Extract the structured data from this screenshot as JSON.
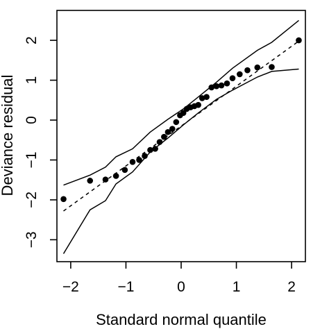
{
  "chart_data": {
    "type": "scatter",
    "title": "",
    "xlabel": "Standard normal quantile",
    "ylabel": "Deviance residual",
    "xlim": [
      -2.25,
      2.25
    ],
    "ylim": [
      -3.55,
      2.75
    ],
    "grid": false,
    "x_ticks": [
      -2,
      -1,
      0,
      1,
      2
    ],
    "x_tick_labels": [
      "−2",
      "−1",
      "0",
      "1",
      "2"
    ],
    "y_ticks": [
      -3,
      -2,
      -1,
      0,
      1,
      2
    ],
    "y_tick_labels": [
      "−3",
      "−2",
      "−1",
      "0",
      "1",
      "2"
    ],
    "points": {
      "x": [
        -2.13,
        -1.65,
        -1.37,
        -1.18,
        -1.02,
        -0.88,
        -0.76,
        -0.66,
        -0.56,
        -0.47,
        -0.39,
        -0.31,
        -0.24,
        -0.16,
        -0.09,
        -0.02,
        0.04,
        0.1,
        0.17,
        0.24,
        0.31,
        0.38,
        0.46,
        0.55,
        0.64,
        0.73,
        0.83,
        0.93,
        1.06,
        1.2,
        1.38,
        1.64,
        2.13
      ],
      "y": [
        -1.98,
        -1.52,
        -1.49,
        -1.4,
        -1.25,
        -1.05,
        -1.0,
        -0.9,
        -0.75,
        -0.72,
        -0.55,
        -0.42,
        -0.3,
        -0.22,
        -0.05,
        0.12,
        0.18,
        0.28,
        0.32,
        0.35,
        0.38,
        0.55,
        0.58,
        0.82,
        0.85,
        0.87,
        0.92,
        1.05,
        1.15,
        1.25,
        1.32,
        1.33,
        2.0
      ]
    },
    "reference_line": {
      "x": [
        -2.13,
        2.13
      ],
      "y": [
        -2.28,
        1.98
      ],
      "style": "dashed"
    },
    "envelope_upper": {
      "x": [
        -2.13,
        -1.65,
        -1.37,
        -1.18,
        -0.88,
        -0.56,
        -0.24,
        0.04,
        0.31,
        0.64,
        0.93,
        1.38,
        1.64,
        2.13
      ],
      "y": [
        -1.63,
        -1.38,
        -1.18,
        -0.92,
        -0.72,
        -0.3,
        0.02,
        0.28,
        0.58,
        0.95,
        1.3,
        1.75,
        1.95,
        2.5
      ]
    },
    "envelope_lower": {
      "x": [
        -2.13,
        -1.65,
        -1.37,
        -1.18,
        -0.88,
        -0.56,
        -0.24,
        0.04,
        0.31,
        0.64,
        0.93,
        1.38,
        1.64,
        2.13
      ],
      "y": [
        -3.35,
        -2.25,
        -2.02,
        -1.6,
        -1.3,
        -0.8,
        -0.45,
        -0.12,
        0.18,
        0.52,
        0.75,
        1.08,
        1.22,
        1.28
      ]
    },
    "colors": {
      "points": "#000000",
      "lines": "#000000",
      "background": "#ffffff"
    }
  }
}
